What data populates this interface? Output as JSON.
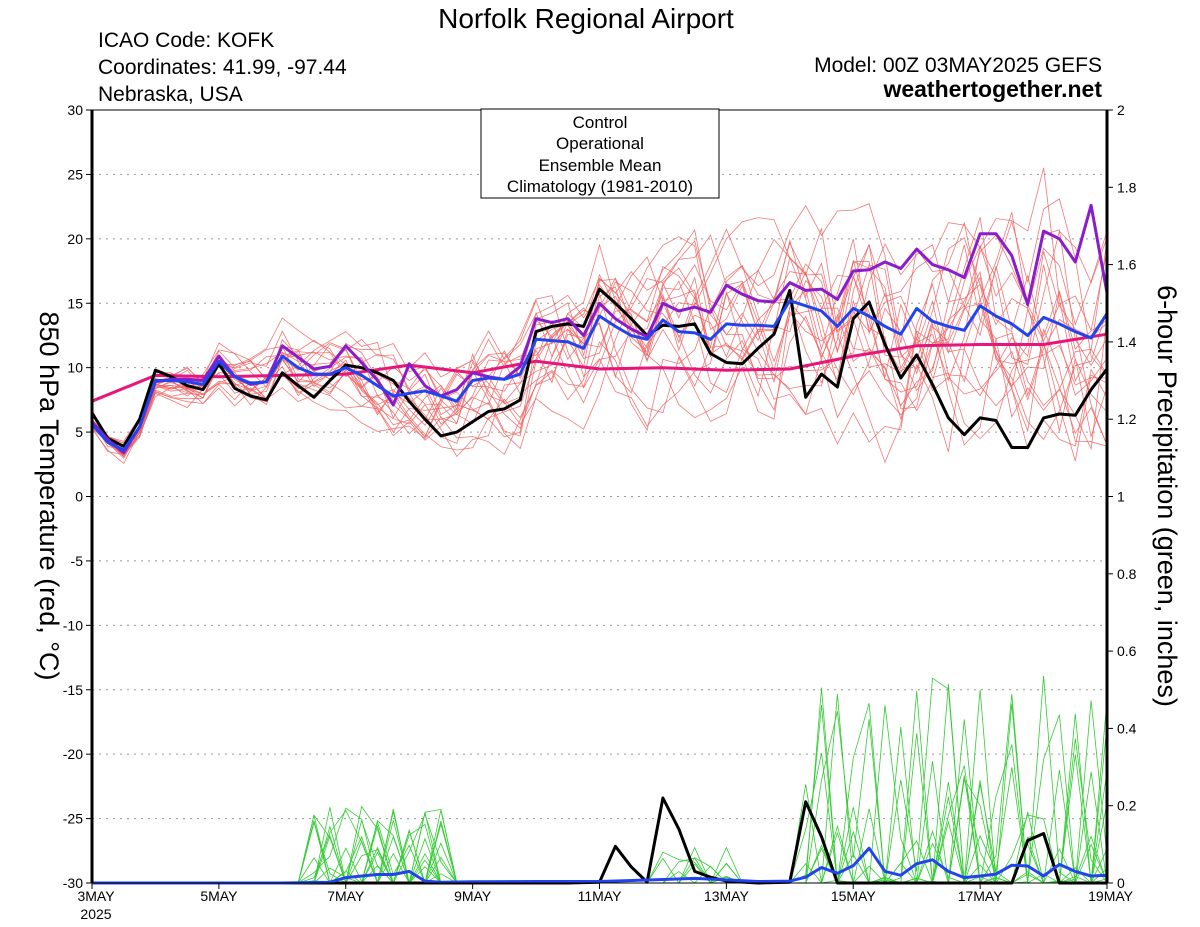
{
  "header": {
    "title": "Norfolk Regional Airport",
    "icao": "ICAO Code: KOFK",
    "coords": "Coordinates: 41.99, -97.44",
    "region": "Nebraska, USA",
    "model": "Model: 00Z 03MAY2025 GEFS",
    "site": "weathertogether.net"
  },
  "legend": {
    "items": [
      {
        "label": "Control",
        "color": "#000000"
      },
      {
        "label": "Operational",
        "color": "#8a1ccc"
      },
      {
        "label": "Ensemble Mean",
        "color": "#2244ee"
      },
      {
        "label": "Climatology (1981-2010)",
        "color": "#e8157a"
      }
    ]
  },
  "colors": {
    "members_temp": "#f06060",
    "members_precip": "#33cc33",
    "control": "#000000",
    "operational": "#8a1ccc",
    "mean": "#2244ee",
    "climatology": "#e8157a",
    "site": "#1e9bea",
    "grid": "#999999"
  },
  "chart_data": {
    "type": "line",
    "ylabel_left": "850 hPa Temperature (red, °C)",
    "ylabel_right": "6-hour Precipitation (green, inches)",
    "ylim_left": [
      -30,
      30
    ],
    "ylim_right": [
      0,
      2
    ],
    "yticks_left": [
      -30,
      -25,
      -20,
      -15,
      -10,
      -5,
      0,
      5,
      10,
      15,
      20,
      25,
      30
    ],
    "yticks_right": [
      0,
      0.2,
      0.4,
      0.6,
      0.8,
      1,
      1.2,
      1.4,
      1.6,
      1.8,
      2
    ],
    "xlim_days": [
      0,
      16
    ],
    "xticks": [
      {
        "d": 0,
        "label": "3MAY",
        "sub": "2025"
      },
      {
        "d": 2,
        "label": "5MAY"
      },
      {
        "d": 4,
        "label": "7MAY"
      },
      {
        "d": 6,
        "label": "9MAY"
      },
      {
        "d": 8,
        "label": "11MAY"
      },
      {
        "d": 10,
        "label": "13MAY"
      },
      {
        "d": 12,
        "label": "15MAY"
      },
      {
        "d": 14,
        "label": "17MAY"
      },
      {
        "d": 16,
        "label": "19MAY"
      }
    ],
    "grid": "horizontal dotted",
    "series": [
      {
        "key": "climatology",
        "axis": "left",
        "points": [
          [
            0,
            7.4
          ],
          [
            1,
            9.4
          ],
          [
            2,
            9.3
          ],
          [
            3,
            9.4
          ],
          [
            4,
            9.5
          ],
          [
            5,
            10.2
          ],
          [
            6,
            9.6
          ],
          [
            7,
            10.5
          ],
          [
            8,
            9.9
          ],
          [
            9,
            10.0
          ],
          [
            10,
            9.8
          ],
          [
            11,
            9.9
          ],
          [
            12,
            10.9
          ],
          [
            13,
            11.7
          ],
          [
            14,
            11.8
          ],
          [
            15,
            11.8
          ],
          [
            16,
            12.6
          ]
        ]
      },
      {
        "key": "control",
        "axis": "left",
        "points": [
          [
            0,
            6.5
          ],
          [
            0.25,
            4.5
          ],
          [
            0.5,
            3.9
          ],
          [
            0.75,
            6.0
          ],
          [
            1,
            9.8
          ],
          [
            1.25,
            9.3
          ],
          [
            1.5,
            8.6
          ],
          [
            1.75,
            8.3
          ],
          [
            2,
            10.3
          ],
          [
            2.25,
            8.4
          ],
          [
            2.5,
            7.8
          ],
          [
            2.75,
            7.5
          ],
          [
            3,
            9.6
          ],
          [
            3.25,
            8.6
          ],
          [
            3.5,
            7.7
          ],
          [
            3.75,
            9.0
          ],
          [
            4,
            10.2
          ],
          [
            4.25,
            10.0
          ],
          [
            4.5,
            9.6
          ],
          [
            4.75,
            9.0
          ],
          [
            5,
            7.4
          ],
          [
            5.25,
            6.0
          ],
          [
            5.5,
            4.7
          ],
          [
            5.75,
            5.0
          ],
          [
            6,
            5.8
          ],
          [
            6.25,
            6.6
          ],
          [
            6.5,
            6.8
          ],
          [
            6.75,
            7.5
          ],
          [
            7,
            12.8
          ],
          [
            7.25,
            13.2
          ],
          [
            7.5,
            13.4
          ],
          [
            7.75,
            13.2
          ],
          [
            8,
            16.1
          ],
          [
            8.25,
            15.0
          ],
          [
            8.5,
            13.8
          ],
          [
            8.75,
            12.5
          ],
          [
            9,
            13.3
          ],
          [
            9.25,
            13.2
          ],
          [
            9.5,
            13.4
          ],
          [
            9.75,
            11.1
          ],
          [
            10,
            10.4
          ],
          [
            10.25,
            10.3
          ],
          [
            10.5,
            11.5
          ],
          [
            10.75,
            12.6
          ],
          [
            11,
            16.0
          ],
          [
            11.25,
            7.7
          ],
          [
            11.5,
            9.5
          ],
          [
            11.75,
            8.5
          ],
          [
            12,
            13.8
          ],
          [
            12.25,
            15.1
          ],
          [
            12.5,
            11.8
          ],
          [
            12.75,
            9.2
          ],
          [
            13,
            11.0
          ],
          [
            13.25,
            8.7
          ],
          [
            13.5,
            6.1
          ],
          [
            13.75,
            4.8
          ],
          [
            14,
            6.1
          ],
          [
            14.25,
            5.9
          ],
          [
            14.5,
            3.8
          ],
          [
            14.75,
            3.8
          ],
          [
            15,
            6.1
          ],
          [
            15.25,
            6.4
          ],
          [
            15.5,
            6.3
          ],
          [
            15.75,
            8.3
          ],
          [
            16,
            9.9
          ]
        ]
      },
      {
        "key": "operational",
        "axis": "left",
        "points": [
          [
            0,
            5.8
          ],
          [
            0.25,
            4.4
          ],
          [
            0.5,
            3.4
          ],
          [
            0.75,
            5.4
          ],
          [
            1,
            8.9
          ],
          [
            1.25,
            9.1
          ],
          [
            1.5,
            9.1
          ],
          [
            1.75,
            9.0
          ],
          [
            2,
            10.9
          ],
          [
            2.25,
            9.3
          ],
          [
            2.5,
            8.7
          ],
          [
            2.75,
            8.9
          ],
          [
            3,
            11.7
          ],
          [
            3.25,
            10.8
          ],
          [
            3.5,
            9.9
          ],
          [
            3.75,
            10.1
          ],
          [
            4,
            11.7
          ],
          [
            4.25,
            10.4
          ],
          [
            4.5,
            9.0
          ],
          [
            4.75,
            7.1
          ],
          [
            5,
            10.3
          ],
          [
            5.25,
            8.6
          ],
          [
            5.5,
            7.8
          ],
          [
            5.75,
            8.3
          ],
          [
            6,
            9.6
          ],
          [
            6.25,
            9.3
          ],
          [
            6.5,
            9.1
          ],
          [
            6.75,
            10.1
          ],
          [
            7,
            13.8
          ],
          [
            7.25,
            13.5
          ],
          [
            7.5,
            13.8
          ],
          [
            7.75,
            12.5
          ],
          [
            8,
            15.0
          ],
          [
            8.25,
            13.8
          ],
          [
            8.5,
            13.0
          ],
          [
            8.75,
            12.4
          ],
          [
            9,
            15.0
          ],
          [
            9.25,
            14.4
          ],
          [
            9.5,
            14.7
          ],
          [
            9.75,
            14.3
          ],
          [
            10,
            16.4
          ],
          [
            10.25,
            15.7
          ],
          [
            10.5,
            15.2
          ],
          [
            10.75,
            15.1
          ],
          [
            11,
            16.6
          ],
          [
            11.25,
            16.0
          ],
          [
            11.5,
            16.1
          ],
          [
            11.75,
            15.3
          ],
          [
            12,
            17.5
          ],
          [
            12.25,
            17.6
          ],
          [
            12.5,
            18.2
          ],
          [
            12.75,
            17.7
          ],
          [
            13,
            19.2
          ],
          [
            13.25,
            18.0
          ],
          [
            13.5,
            17.6
          ],
          [
            13.75,
            17.0
          ],
          [
            14,
            20.4
          ],
          [
            14.25,
            20.4
          ],
          [
            14.5,
            18.7
          ],
          [
            14.75,
            14.9
          ],
          [
            15,
            20.6
          ],
          [
            15.25,
            20.0
          ],
          [
            15.5,
            18.2
          ],
          [
            15.75,
            22.6
          ],
          [
            16,
            15.8
          ]
        ]
      },
      {
        "key": "mean",
        "axis": "left",
        "points": [
          [
            0,
            5.6
          ],
          [
            0.25,
            4.2
          ],
          [
            0.5,
            3.6
          ],
          [
            0.75,
            5.4
          ],
          [
            1,
            9.0
          ],
          [
            1.25,
            9.0
          ],
          [
            1.5,
            8.9
          ],
          [
            1.75,
            8.7
          ],
          [
            2,
            10.5
          ],
          [
            2.25,
            9.3
          ],
          [
            2.5,
            8.8
          ],
          [
            2.75,
            8.9
          ],
          [
            3,
            10.9
          ],
          [
            3.25,
            10.0
          ],
          [
            3.5,
            9.5
          ],
          [
            3.75,
            9.5
          ],
          [
            4,
            10.0
          ],
          [
            4.25,
            9.4
          ],
          [
            4.5,
            8.6
          ],
          [
            4.75,
            7.8
          ],
          [
            5,
            8.0
          ],
          [
            5.25,
            8.2
          ],
          [
            5.5,
            7.8
          ],
          [
            5.75,
            7.4
          ],
          [
            6,
            9.0
          ],
          [
            6.25,
            9.2
          ],
          [
            6.5,
            9.1
          ],
          [
            6.75,
            9.5
          ],
          [
            7,
            12.2
          ],
          [
            7.25,
            12.1
          ],
          [
            7.5,
            12.0
          ],
          [
            7.75,
            11.5
          ],
          [
            8,
            14.0
          ],
          [
            8.25,
            13.2
          ],
          [
            8.5,
            12.5
          ],
          [
            8.75,
            12.2
          ],
          [
            9,
            13.7
          ],
          [
            9.25,
            12.8
          ],
          [
            9.5,
            12.7
          ],
          [
            9.75,
            12.2
          ],
          [
            10,
            13.4
          ],
          [
            10.25,
            13.3
          ],
          [
            10.5,
            13.3
          ],
          [
            10.75,
            13.2
          ],
          [
            11,
            15.2
          ],
          [
            11.25,
            14.8
          ],
          [
            11.5,
            14.4
          ],
          [
            11.75,
            13.2
          ],
          [
            12,
            14.6
          ],
          [
            12.25,
            14.0
          ],
          [
            12.5,
            13.2
          ],
          [
            12.75,
            12.6
          ],
          [
            13,
            14.6
          ],
          [
            13.25,
            13.6
          ],
          [
            13.5,
            13.2
          ],
          [
            13.75,
            12.9
          ],
          [
            14,
            14.8
          ],
          [
            14.25,
            14.0
          ],
          [
            14.5,
            13.4
          ],
          [
            14.75,
            12.5
          ],
          [
            15,
            13.9
          ],
          [
            15.25,
            13.4
          ],
          [
            15.5,
            12.8
          ],
          [
            15.75,
            12.3
          ],
          [
            16,
            14.2
          ]
        ]
      },
      {
        "key": "control",
        "axis": "right",
        "points": [
          [
            0,
            0
          ],
          [
            1,
            0
          ],
          [
            2,
            0
          ],
          [
            3,
            0
          ],
          [
            4,
            0
          ],
          [
            5,
            0
          ],
          [
            6,
            0
          ],
          [
            7,
            0
          ],
          [
            7.5,
            0
          ],
          [
            8,
            0.002
          ],
          [
            8.25,
            0.095
          ],
          [
            8.5,
            0.042
          ],
          [
            8.75,
            0.002
          ],
          [
            9,
            0.22
          ],
          [
            9.25,
            0.14
          ],
          [
            9.5,
            0.03
          ],
          [
            9.75,
            0.015
          ],
          [
            10,
            0.005
          ],
          [
            10.5,
            0
          ],
          [
            11,
            0.002
          ],
          [
            11.25,
            0.21
          ],
          [
            11.5,
            0.12
          ],
          [
            11.75,
            0
          ],
          [
            12,
            0
          ],
          [
            13,
            0
          ],
          [
            14,
            0
          ],
          [
            14.5,
            0
          ],
          [
            14.75,
            0.11
          ],
          [
            15,
            0.128
          ],
          [
            15.25,
            0
          ],
          [
            16,
            0
          ]
        ]
      },
      {
        "key": "mean",
        "axis": "right",
        "points": [
          [
            0,
            0
          ],
          [
            3,
            0
          ],
          [
            3.75,
            0.002
          ],
          [
            4,
            0.014
          ],
          [
            4.25,
            0.018
          ],
          [
            4.5,
            0.022
          ],
          [
            4.75,
            0.022
          ],
          [
            5,
            0.03
          ],
          [
            5.25,
            0.005
          ],
          [
            5.5,
            0.002
          ],
          [
            6,
            0.003
          ],
          [
            7,
            0.004
          ],
          [
            8,
            0.004
          ],
          [
            9,
            0.009
          ],
          [
            9.5,
            0.012
          ],
          [
            10,
            0.008
          ],
          [
            10.5,
            0.004
          ],
          [
            11,
            0.005
          ],
          [
            11.25,
            0.015
          ],
          [
            11.5,
            0.04
          ],
          [
            11.75,
            0.025
          ],
          [
            12,
            0.045
          ],
          [
            12.25,
            0.09
          ],
          [
            12.5,
            0.03
          ],
          [
            12.75,
            0.02
          ],
          [
            13,
            0.05
          ],
          [
            13.25,
            0.06
          ],
          [
            13.5,
            0.03
          ],
          [
            13.75,
            0.014
          ],
          [
            14,
            0.018
          ],
          [
            14.25,
            0.023
          ],
          [
            14.5,
            0.046
          ],
          [
            14.75,
            0.044
          ],
          [
            15,
            0.018
          ],
          [
            15.25,
            0.048
          ],
          [
            15.5,
            0.03
          ],
          [
            15.75,
            0.018
          ],
          [
            16,
            0.02
          ]
        ]
      }
    ]
  }
}
